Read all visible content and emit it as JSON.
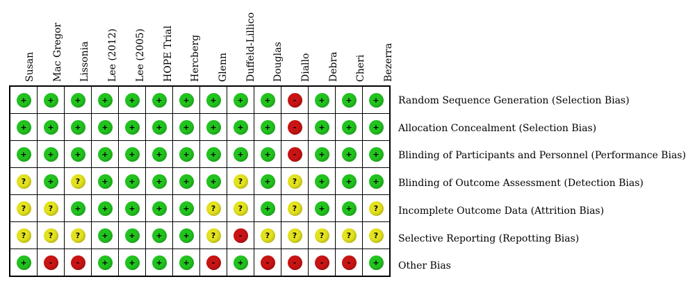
{
  "colors": {
    "low": "#22c31f",
    "unclear": "#e3e21e",
    "high": "#c81414"
  },
  "symbols": {
    "low": "+",
    "unclear": "?",
    "high": "-"
  },
  "studies": [
    "Susan",
    "Mac Gregor",
    "Lissonia",
    "Lee (2012)",
    "Lee (2005)",
    "HOPE Trial",
    "Hercberg",
    "Glenn",
    "Duffeld-Lillico",
    "Douglas",
    "Diallo",
    "Debra",
    "Cheri",
    "Bezerra"
  ],
  "domains": [
    "Random Sequence Generation (Selection Bias)",
    "Allocation Concealment (Selection Bias)",
    "Blinding of Participants and Personnel (Performance Bias)",
    "Blinding of Outcome Assessment (Detection Bias)",
    "Incomplete Outcome Data (Attrition Bias)",
    "Selective Reporting (Repotting Bias)",
    "Other Bias"
  ],
  "judgements": [
    [
      "low",
      "low",
      "low",
      "low",
      "low",
      "low",
      "low",
      "low",
      "low",
      "low",
      "high",
      "low",
      "low",
      "low"
    ],
    [
      "low",
      "low",
      "low",
      "low",
      "low",
      "low",
      "low",
      "low",
      "low",
      "low",
      "high",
      "low",
      "low",
      "low"
    ],
    [
      "low",
      "low",
      "low",
      "low",
      "low",
      "low",
      "low",
      "low",
      "low",
      "low",
      "high",
      "low",
      "low",
      "low"
    ],
    [
      "unclear",
      "low",
      "unclear",
      "low",
      "low",
      "low",
      "low",
      "low",
      "unclear",
      "low",
      "unclear",
      "low",
      "low",
      "low"
    ],
    [
      "unclear",
      "unclear",
      "low",
      "low",
      "low",
      "low",
      "low",
      "unclear",
      "unclear",
      "low",
      "unclear",
      "low",
      "low",
      "unclear"
    ],
    [
      "unclear",
      "unclear",
      "unclear",
      "low",
      "low",
      "low",
      "low",
      "unclear",
      "high",
      "unclear",
      "unclear",
      "unclear",
      "unclear",
      "unclear"
    ],
    [
      "low",
      "high",
      "high",
      "low",
      "low",
      "low",
      "low",
      "high",
      "low",
      "high",
      "high",
      "high",
      "high",
      "low"
    ]
  ]
}
